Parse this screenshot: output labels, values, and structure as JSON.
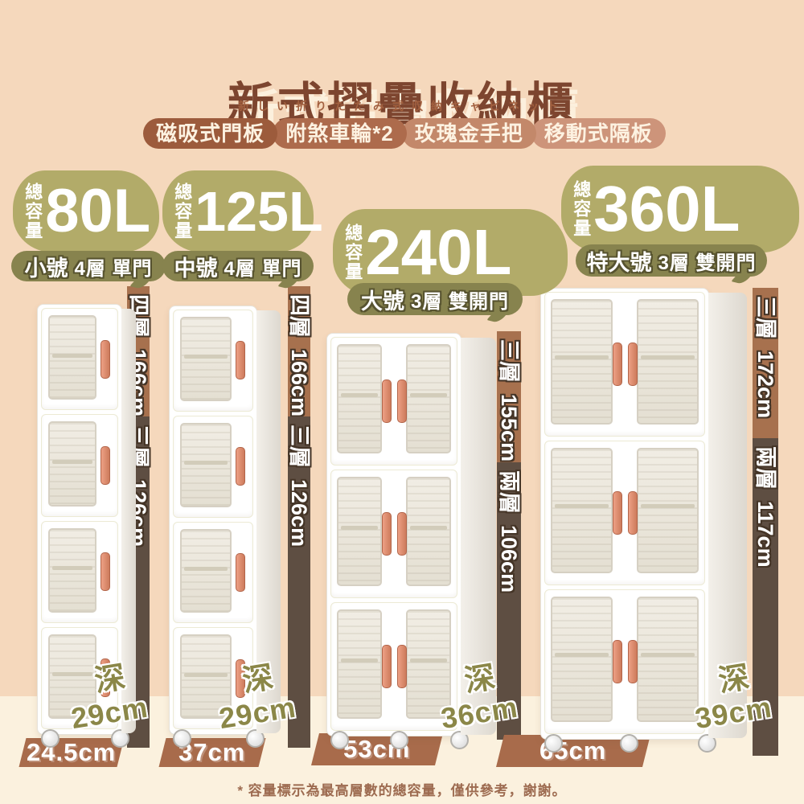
{
  "header": {
    "title": "新式摺疊收納櫃",
    "subtitle_jp": "新しい折りたたみ式収納キャビネット",
    "badges": [
      "磁吸式門板",
      "附煞車輪*2",
      "玫瑰金手把",
      "移動式隔板"
    ]
  },
  "products": [
    {
      "capacity_prefix": "總容量",
      "capacity": "80L",
      "spec_size": "小號",
      "spec_config": "4層 單門",
      "layers": 4,
      "doors": 1,
      "heights": [
        {
          "label": "四層",
          "value": "166cm"
        },
        {
          "label": "三層",
          "value": "126cm"
        }
      ],
      "depth_label": "深",
      "depth": "29cm",
      "width": "24.5cm"
    },
    {
      "capacity_prefix": "總容量",
      "capacity": "125L",
      "spec_size": "中號",
      "spec_config": "4層 單門",
      "layers": 4,
      "doors": 1,
      "heights": [
        {
          "label": "四層",
          "value": "166cm"
        },
        {
          "label": "三層",
          "value": "126cm"
        }
      ],
      "depth_label": "深",
      "depth": "29cm",
      "width": "37cm"
    },
    {
      "capacity_prefix": "總容量",
      "capacity": "240L",
      "spec_size": "大號",
      "spec_config": "3層 雙開門",
      "layers": 3,
      "doors": 2,
      "heights": [
        {
          "label": "三層",
          "value": "155cm"
        },
        {
          "label": "兩層",
          "value": "106cm"
        }
      ],
      "depth_label": "深",
      "depth": "36cm",
      "width": "53cm"
    },
    {
      "capacity_prefix": "總容量",
      "capacity": "360L",
      "spec_size": "特大號",
      "spec_config": "3層 雙開門",
      "layers": 3,
      "doors": 2,
      "heights": [
        {
          "label": "三層",
          "value": "172cm"
        },
        {
          "label": "兩層",
          "value": "117cm"
        }
      ],
      "depth_label": "深",
      "depth": "39cm",
      "width": "65cm"
    }
  ],
  "footnote": "* 容量標示為最高層數的總容量，僅供參考，謝謝。",
  "colors": {
    "bg_top": "#f5d8bc",
    "bg_bottom": "#fbf1de",
    "title_brown": "#7d452f",
    "badge_dark": "#9c5b3c",
    "badge_light": "#cd947a",
    "olive_blob": "#b2ab69",
    "olive_dark_pill": "#87834e",
    "ribbon_light_brown": "#a7714e",
    "ribbon_dark_brown": "#5e4e42",
    "width_bar_brown": "#a86b4b",
    "handle_rose_gold": "#d98a6c",
    "depth_text_olive": "#8b8748"
  }
}
